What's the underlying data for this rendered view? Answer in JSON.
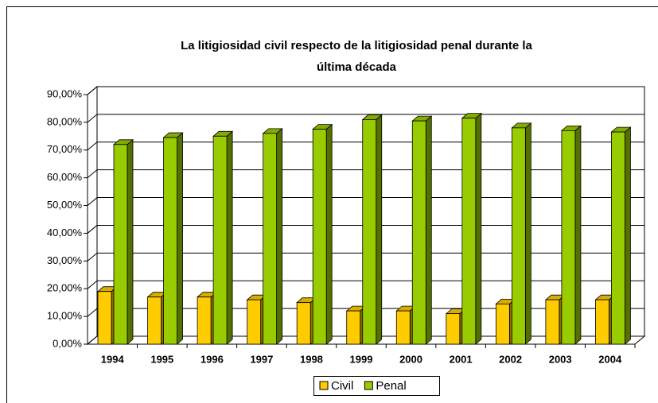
{
  "chart_data": {
    "type": "bar3d",
    "title": "La litigiosidad civil respecto de la litigiosidad penal durante la última década",
    "categories": [
      "1994",
      "1995",
      "1996",
      "1997",
      "1998",
      "1999",
      "2000",
      "2001",
      "2002",
      "2003",
      "2004"
    ],
    "series": [
      {
        "name": "Civil",
        "color": "#ffcc00",
        "values": [
          19,
          17,
          17,
          16,
          15,
          12,
          12,
          11,
          14.5,
          16,
          16
        ]
      },
      {
        "name": "Penal",
        "color": "#99cc00",
        "values": [
          72,
          74.5,
          75,
          76,
          77.5,
          81,
          80.5,
          81.5,
          78,
          77,
          76.5
        ]
      }
    ],
    "ylim": [
      0,
      90
    ],
    "yticks": [
      {
        "value": 0,
        "label": "0,00%"
      },
      {
        "value": 10,
        "label": "10,00%"
      },
      {
        "value": 20,
        "label": "20,00%"
      },
      {
        "value": 30,
        "label": "30,00%"
      },
      {
        "value": 40,
        "label": "40,00%"
      },
      {
        "value": 50,
        "label": "50,00%"
      },
      {
        "value": 60,
        "label": "60,00%"
      },
      {
        "value": 70,
        "label": "70,00%"
      },
      {
        "value": 80,
        "label": "80,00%"
      },
      {
        "value": 90,
        "label": "90,00%"
      }
    ],
    "grid": true,
    "legend": "bottom"
  }
}
